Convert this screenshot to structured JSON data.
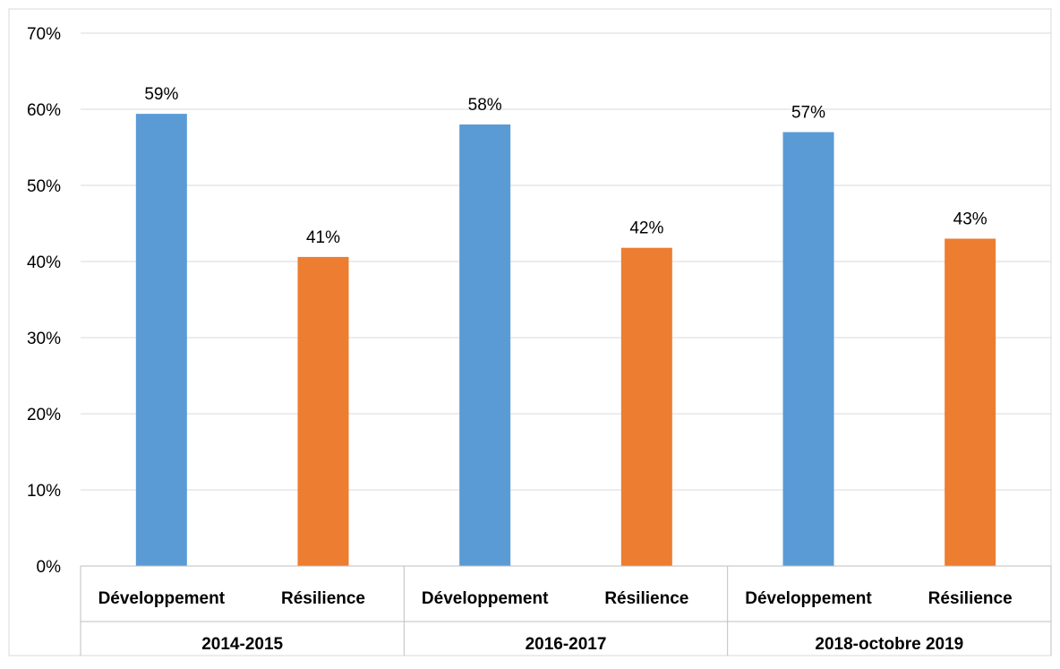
{
  "chart_data": {
    "type": "bar",
    "groups": [
      {
        "label": "2014-2015",
        "categories": [
          "Développement",
          "Résilience"
        ],
        "values": [
          59.4,
          40.6
        ],
        "labels": [
          "59%",
          "41%"
        ]
      },
      {
        "label": "2016-2017",
        "categories": [
          "Développement",
          "Résilience"
        ],
        "values": [
          58.0,
          41.8
        ],
        "labels": [
          "58%",
          "42%"
        ]
      },
      {
        "label": "2018-octobre 2019",
        "categories": [
          "Développement",
          "Résilience"
        ],
        "values": [
          57.0,
          43.0
        ],
        "labels": [
          "57%",
          "43%"
        ]
      }
    ],
    "series_colors": {
      "Développement": "#5B9BD5",
      "Résilience": "#ED7D31"
    },
    "y_ticks": [
      "0%",
      "10%",
      "20%",
      "30%",
      "40%",
      "50%",
      "60%",
      "70%"
    ],
    "ylim": [
      0,
      70
    ],
    "grid": true,
    "legend": "none"
  }
}
